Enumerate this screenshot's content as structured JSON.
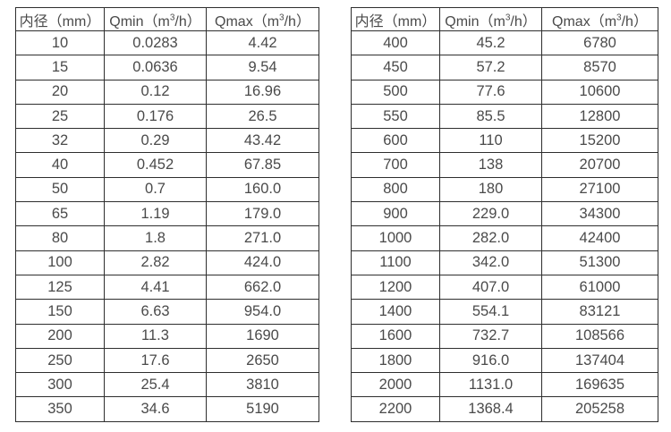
{
  "page": {
    "background_color": "#ffffff",
    "text_color": "#4a4a4a",
    "border_color": "#2e2e2e"
  },
  "columns": {
    "diameter_label": "内径（mm）",
    "qmin_prefix": "Qmin（m",
    "qmax_prefix": "Qmax（m",
    "superscript": "3",
    "unit_suffix": "/h）"
  },
  "tables": [
    {
      "name": "left-flow-table",
      "rows": [
        [
          "10",
          "0.0283",
          "4.42"
        ],
        [
          "15",
          "0.0636",
          "9.54"
        ],
        [
          "20",
          "0.12",
          "16.96"
        ],
        [
          "25",
          "0.176",
          "26.5"
        ],
        [
          "32",
          "0.29",
          "43.42"
        ],
        [
          "40",
          "0.452",
          "67.85"
        ],
        [
          "50",
          "0.7",
          "160.0"
        ],
        [
          "65",
          "1.19",
          "179.0"
        ],
        [
          "80",
          "1.8",
          "271.0"
        ],
        [
          "100",
          "2.82",
          "424.0"
        ],
        [
          "125",
          "4.41",
          "662.0"
        ],
        [
          "150",
          "6.63",
          "954.0"
        ],
        [
          "200",
          "11.3",
          "1690"
        ],
        [
          "250",
          "17.6",
          "2650"
        ],
        [
          "300",
          "25.4",
          "3810"
        ],
        [
          "350",
          "34.6",
          "5190"
        ]
      ]
    },
    {
      "name": "right-flow-table",
      "rows": [
        [
          "400",
          "45.2",
          "6780"
        ],
        [
          "450",
          "57.2",
          "8570"
        ],
        [
          "500",
          "77.6",
          "10600"
        ],
        [
          "550",
          "85.5",
          "12800"
        ],
        [
          "600",
          "110",
          "15200"
        ],
        [
          "700",
          "138",
          "20700"
        ],
        [
          "800",
          "180",
          "27100"
        ],
        [
          "900",
          "229.0",
          "34300"
        ],
        [
          "1000",
          "282.0",
          "42400"
        ],
        [
          "1100",
          "342.0",
          "51300"
        ],
        [
          "1200",
          "407.0",
          "61000"
        ],
        [
          "1400",
          "554.1",
          "83121"
        ],
        [
          "1600",
          "732.7",
          "108566"
        ],
        [
          "1800",
          "916.0",
          "137404"
        ],
        [
          "2000",
          "1131.0",
          "169635"
        ],
        [
          "2200",
          "1368.4",
          "205258"
        ]
      ]
    }
  ]
}
